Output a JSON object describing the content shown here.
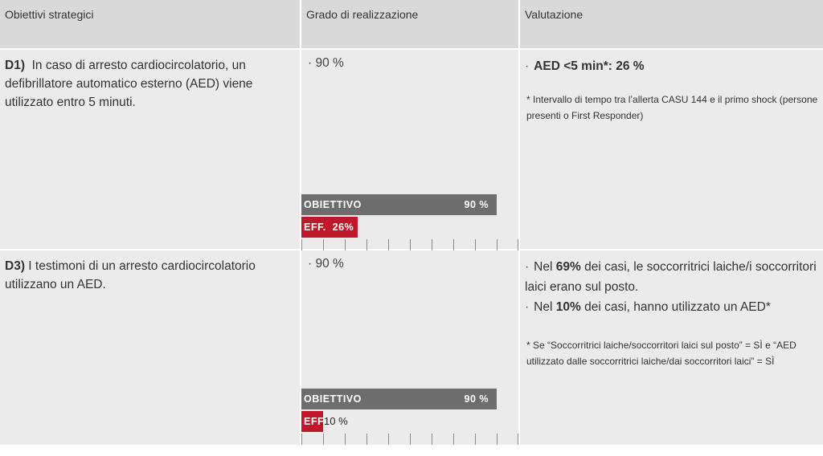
{
  "header": {
    "col1": "Obiettivi strategici",
    "col2": "Grado di realizzazione",
    "col3": "Valutazione"
  },
  "rows": [
    {
      "code": "D1)",
      "goal": "In caso di arresto cardiocircolatorio, un defibrillatore automatico esterno (AED) viene utilizzato entro 5 minuti.",
      "target_pct_text": "· 90 %",
      "bar_target_label": "OBIETTIVO",
      "bar_target_value": "90 %",
      "target_value": 90,
      "bar_eff_label": "EFF.",
      "bar_eff_value": "26%",
      "eff_value": 26,
      "eval_bold": "AED <5 min*: 26 %",
      "note": "* Intervallo di tempo tra l’allerta CASU 144 e il primo shock (persone presenti o First Responder)"
    },
    {
      "code": "D3)",
      "goal": "I testimoni di un arresto cardiocircolatorio utilizzano un AED.",
      "target_pct_text": "· 90 %",
      "bar_target_label": "OBIETTIVO",
      "bar_target_value": "90 %",
      "target_value": 90,
      "bar_eff_label": "EFF.",
      "bar_eff_value": "10 %",
      "eff_value": 10,
      "eval_items": [
        {
          "pre": "Nel ",
          "bold": "69%",
          "post": " dei casi, le soccorritrici laiche/i soccorritori laici erano sul posto."
        },
        {
          "pre": "Nel ",
          "bold": "10%",
          "post": " dei casi, hanno utilizzato un AED*"
        }
      ],
      "note": "* Se “Soccorritrici laiche/soccorritori laici sul posto” = SÌ e “AED utilizzato dalle soccorritrici laiche/dai soccorritori laici” = SÌ"
    }
  ],
  "colors": {
    "target_bar": "#6d6d6d",
    "eff_bar": "#c0182b",
    "header_bg": "#d9d9d9",
    "cell_bg": "#ebebeb"
  }
}
